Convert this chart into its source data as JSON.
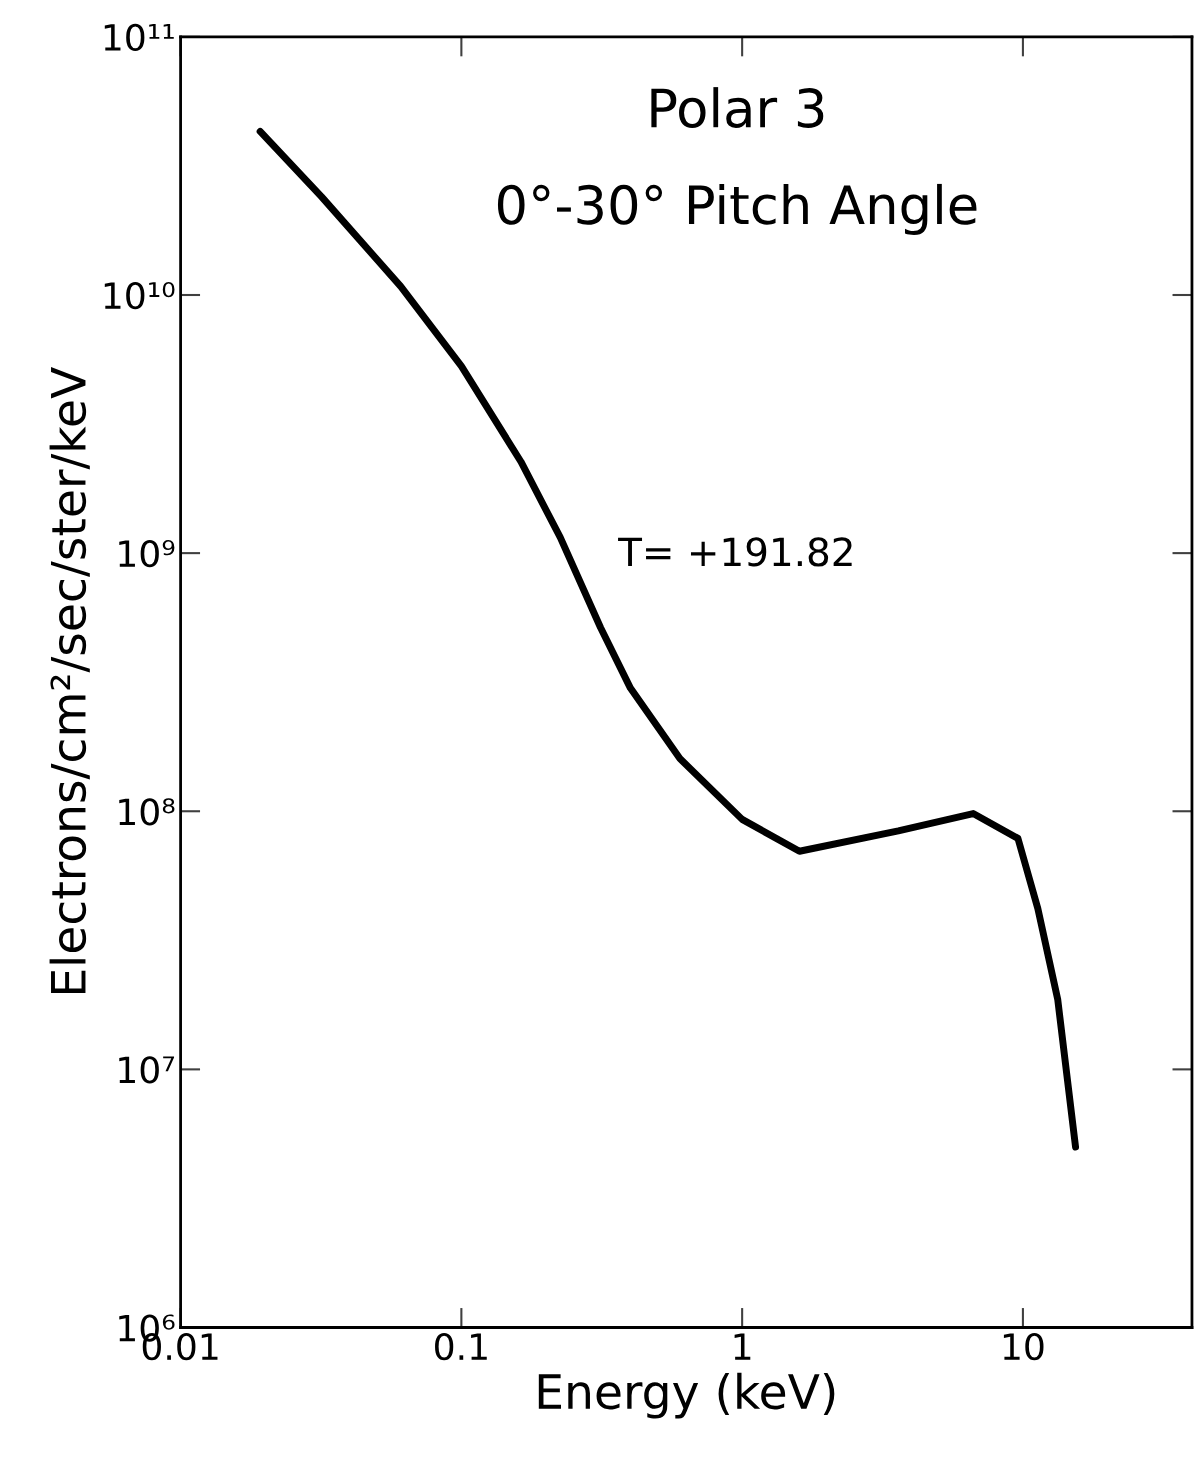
{
  "chart_data": {
    "type": "line",
    "title": "Polar 3",
    "subtitle": "0°-30° Pitch Angle",
    "xlabel": "Energy (keV)",
    "ylabel": "Electrons/cm²/sec/ster/keV",
    "annotations": [
      "T= +191.82"
    ],
    "log": "xy",
    "xlim": [
      0.01,
      40
    ],
    "ylim": [
      1000000.0,
      100000000000.0
    ],
    "xticks": [
      0.01,
      0.1,
      1,
      10
    ],
    "yticks": [
      {
        "value": 1000000.0,
        "label": "10⁶"
      },
      {
        "value": 10000000.0,
        "label": "10⁷"
      },
      {
        "value": 100000000.0,
        "label": "10⁸"
      },
      {
        "value": 1000000000.0,
        "label": "10⁹"
      },
      {
        "value": 10000000000.0,
        "label": "10¹⁰"
      },
      {
        "value": 100000000000.0,
        "label": "10¹¹"
      }
    ],
    "grid": false,
    "marker": "none",
    "line_style": "solid",
    "series": [
      {
        "color": "#000000",
        "x": [
          0.0192,
          0.0318,
          0.0608,
          0.1,
          0.163,
          0.225,
          0.313,
          0.4,
          0.6,
          1.0,
          1.6,
          3.6,
          6.65,
          9.6,
          11.3,
          13.3,
          15.4
        ],
        "values": [
          43000000000.0,
          24000000000.0,
          10800000000.0,
          5300000000.0,
          2260000000.0,
          1150000000.0,
          515000000.0,
          300000000.0,
          160000000.0,
          93000000.0,
          70000000.0,
          84000000.0,
          98000000.0,
          78500000.0,
          42000000.0,
          18700000.0,
          5000000.0
        ]
      }
    ]
  }
}
